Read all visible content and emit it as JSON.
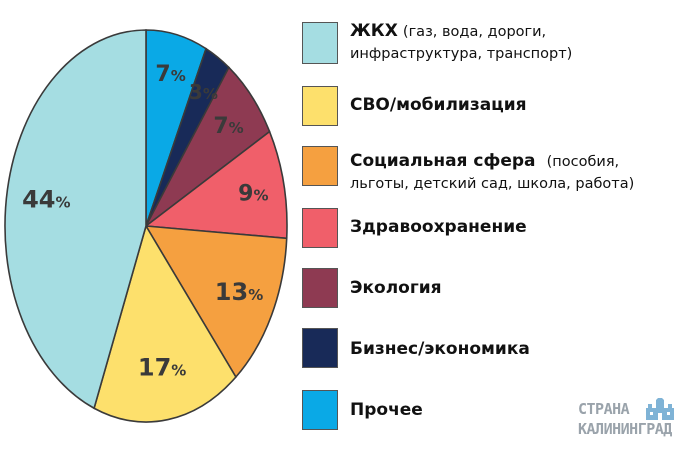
{
  "chart_data": {
    "type": "pie",
    "start": "top",
    "direction": "clockwise",
    "slices": [
      {
        "label": "Прочее",
        "value": 7,
        "display": "7",
        "color": "#0aa9e6"
      },
      {
        "label": "Бизнес/экономика",
        "value": 3,
        "display": "3",
        "color": "#182a58"
      },
      {
        "label": "Экология",
        "value": 7,
        "display": "7",
        "color": "#8e3a52"
      },
      {
        "label": "Здравоохранение",
        "value": 9,
        "display": "9",
        "color": "#f05f6a"
      },
      {
        "label": "Социальная сфера",
        "value": 13,
        "display": "13",
        "color": "#f5a040"
      },
      {
        "label": "СВО/мобилизация",
        "value": 17,
        "display": "17",
        "color": "#fde06c"
      },
      {
        "label": "ЖКХ",
        "value": 44,
        "display": "44",
        "color": "#a5dde2"
      }
    ],
    "percent_sign": "%"
  },
  "legend": {
    "items": [
      {
        "title": "ЖКХ",
        "note": "(газ, вода, дороги,",
        "line2": "инфраструктура, транспорт)",
        "color": "#a5dde2"
      },
      {
        "title": "СВО/мобилизация",
        "note": "",
        "line2": "",
        "color": "#fde06c"
      },
      {
        "title": "Социальная сфера",
        "note": "(пособия,",
        "line2": "льготы, детский сад, школа, работа)",
        "color": "#f5a040"
      },
      {
        "title": "Здравоохранение",
        "note": "",
        "line2": "",
        "color": "#f05f6a"
      },
      {
        "title": "Экология",
        "note": "",
        "line2": "",
        "color": "#8e3a52"
      },
      {
        "title": "Бизнес/экономика",
        "note": "",
        "line2": "",
        "color": "#182a58"
      },
      {
        "title": "Прочее",
        "note": "",
        "line2": "",
        "color": "#0aa9e6"
      }
    ]
  },
  "watermark": {
    "line1": "СТРАНА",
    "line2": "КАЛИНИНГРАД"
  }
}
